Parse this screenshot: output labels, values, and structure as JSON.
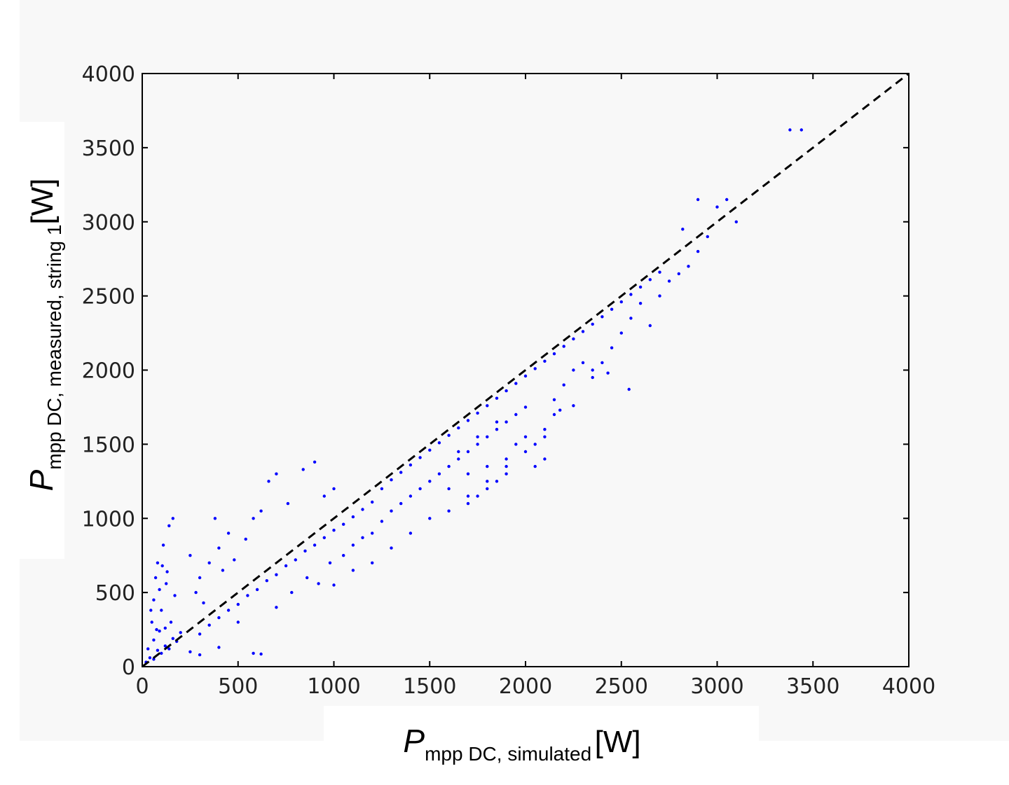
{
  "chart_data": {
    "type": "scatter",
    "xlabel": {
      "main": "P",
      "sub": "mpp DC, simulated",
      "unit": "[W]"
    },
    "ylabel": {
      "main": "P",
      "sub": "mpp DC, measured, string 1",
      "unit": "[W]"
    },
    "xlim": [
      0,
      4000
    ],
    "ylim": [
      0,
      4000
    ],
    "xticks": [
      "0",
      "500",
      "1000",
      "1500",
      "2000",
      "2500",
      "3000",
      "3500",
      "4000"
    ],
    "yticks": [
      "0",
      "500",
      "1000",
      "1500",
      "2000",
      "2500",
      "3000",
      "3500",
      "4000"
    ],
    "grid": false,
    "legend": "none",
    "series": [
      {
        "marker_color": "#0000ff",
        "points": [
          [
            20,
            30
          ],
          [
            40,
            60
          ],
          [
            60,
            50
          ],
          [
            80,
            110
          ],
          [
            100,
            90
          ],
          [
            120,
            140
          ],
          [
            140,
            120
          ],
          [
            160,
            190
          ],
          [
            180,
            170
          ],
          [
            200,
            230
          ],
          [
            50,
            300
          ],
          [
            60,
            450
          ],
          [
            70,
            600
          ],
          [
            80,
            700
          ],
          [
            90,
            520
          ],
          [
            100,
            380
          ],
          [
            110,
            820
          ],
          [
            120,
            260
          ],
          [
            130,
            640
          ],
          [
            140,
            950
          ],
          [
            150,
            300
          ],
          [
            160,
            1000
          ],
          [
            170,
            480
          ],
          [
            60,
            180
          ],
          [
            90,
            240
          ],
          [
            30,
            120
          ],
          [
            45,
            380
          ],
          [
            75,
            250
          ],
          [
            105,
            680
          ],
          [
            125,
            560
          ],
          [
            300,
            600
          ],
          [
            350,
            700
          ],
          [
            400,
            800
          ],
          [
            450,
            900
          ],
          [
            380,
            1000
          ],
          [
            250,
            750
          ],
          [
            280,
            500
          ],
          [
            320,
            430
          ],
          [
            420,
            650
          ],
          [
            480,
            720
          ],
          [
            540,
            860
          ],
          [
            580,
            1000
          ],
          [
            620,
            1050
          ],
          [
            660,
            1250
          ],
          [
            700,
            1300
          ],
          [
            760,
            1100
          ],
          [
            840,
            1330
          ],
          [
            900,
            1380
          ],
          [
            950,
            1150
          ],
          [
            1000,
            1200
          ],
          [
            250,
            100
          ],
          [
            300,
            220
          ],
          [
            350,
            280
          ],
          [
            400,
            330
          ],
          [
            450,
            380
          ],
          [
            500,
            420
          ],
          [
            550,
            480
          ],
          [
            600,
            520
          ],
          [
            650,
            580
          ],
          [
            700,
            620
          ],
          [
            750,
            680
          ],
          [
            800,
            720
          ],
          [
            850,
            780
          ],
          [
            900,
            820
          ],
          [
            950,
            870
          ],
          [
            1000,
            920
          ],
          [
            1050,
            960
          ],
          [
            1100,
            1010
          ],
          [
            1150,
            1060
          ],
          [
            1200,
            1110
          ],
          [
            300,
            80
          ],
          [
            400,
            130
          ],
          [
            500,
            300
          ],
          [
            580,
            90
          ],
          [
            620,
            85
          ],
          [
            700,
            400
          ],
          [
            780,
            500
          ],
          [
            860,
            600
          ],
          [
            920,
            560
          ],
          [
            980,
            700
          ],
          [
            1050,
            750
          ],
          [
            1100,
            820
          ],
          [
            1150,
            870
          ],
          [
            1200,
            900
          ],
          [
            1250,
            980
          ],
          [
            1300,
            1050
          ],
          [
            1350,
            1100
          ],
          [
            1400,
            1150
          ],
          [
            1450,
            1200
          ],
          [
            1500,
            1250
          ],
          [
            1550,
            1300
          ],
          [
            1600,
            1350
          ],
          [
            1650,
            1400
          ],
          [
            1700,
            1450
          ],
          [
            1750,
            1500
          ],
          [
            1800,
            1550
          ],
          [
            1850,
            1600
          ],
          [
            1900,
            1650
          ],
          [
            1950,
            1700
          ],
          [
            2000,
            1750
          ],
          [
            1250,
            1200
          ],
          [
            1300,
            1260
          ],
          [
            1350,
            1310
          ],
          [
            1400,
            1360
          ],
          [
            1450,
            1410
          ],
          [
            1500,
            1460
          ],
          [
            1550,
            1510
          ],
          [
            1600,
            1560
          ],
          [
            1650,
            1610
          ],
          [
            1700,
            1660
          ],
          [
            1750,
            1710
          ],
          [
            1800,
            1760
          ],
          [
            1850,
            1810
          ],
          [
            1900,
            1860
          ],
          [
            1950,
            1910
          ],
          [
            2000,
            1960
          ],
          [
            2050,
            2010
          ],
          [
            2100,
            2060
          ],
          [
            2150,
            2110
          ],
          [
            2200,
            2160
          ],
          [
            2250,
            2210
          ],
          [
            2300,
            2260
          ],
          [
            2350,
            2310
          ],
          [
            2400,
            2360
          ],
          [
            2450,
            2410
          ],
          [
            2500,
            2460
          ],
          [
            2550,
            2510
          ],
          [
            2600,
            2560
          ],
          [
            2650,
            2610
          ],
          [
            2700,
            2660
          ],
          [
            1600,
            1200
          ],
          [
            1700,
            1300
          ],
          [
            1800,
            1350
          ],
          [
            1850,
            1250
          ],
          [
            1900,
            1400
          ],
          [
            1950,
            1500
          ],
          [
            2000,
            1550
          ],
          [
            2050,
            1500
          ],
          [
            2100,
            1600
          ],
          [
            2150,
            1700
          ],
          [
            1700,
            1100
          ],
          [
            1750,
            1150
          ],
          [
            1800,
            1200
          ],
          [
            1900,
            1300
          ],
          [
            2050,
            1350
          ],
          [
            2100,
            1400
          ],
          [
            2150,
            1800
          ],
          [
            2200,
            1900
          ],
          [
            2250,
            2000
          ],
          [
            2300,
            2050
          ],
          [
            2350,
            1950
          ],
          [
            2400,
            2050
          ],
          [
            2450,
            2150
          ],
          [
            2500,
            2250
          ],
          [
            2550,
            2350
          ],
          [
            2600,
            2450
          ],
          [
            2650,
            2300
          ],
          [
            2700,
            2500
          ],
          [
            2750,
            2600
          ],
          [
            2800,
            2650
          ],
          [
            2850,
            2700
          ],
          [
            2900,
            2800
          ],
          [
            2950,
            2900
          ],
          [
            2820,
            2950
          ],
          [
            2900,
            3150
          ],
          [
            3000,
            3100
          ],
          [
            3050,
            3150
          ],
          [
            3100,
            3000
          ],
          [
            3380,
            3620
          ],
          [
            3440,
            3620
          ],
          [
            2540,
            1870
          ],
          [
            2430,
            1980
          ],
          [
            2350,
            2000
          ],
          [
            2250,
            1760
          ],
          [
            2180,
            1730
          ],
          [
            1200,
            700
          ],
          [
            1100,
            650
          ],
          [
            1000,
            550
          ],
          [
            1300,
            800
          ],
          [
            1400,
            900
          ],
          [
            1500,
            1000
          ],
          [
            1600,
            1050
          ],
          [
            1700,
            1150
          ],
          [
            1800,
            1250
          ],
          [
            1900,
            1350
          ],
          [
            2000,
            1450
          ],
          [
            2100,
            1550
          ],
          [
            1650,
            1450
          ],
          [
            1750,
            1550
          ],
          [
            1850,
            1650
          ]
        ]
      }
    ],
    "reference_line": {
      "from": [
        0,
        0
      ],
      "to": [
        4000,
        4000
      ],
      "style": "dashed",
      "color": "#000000"
    }
  }
}
